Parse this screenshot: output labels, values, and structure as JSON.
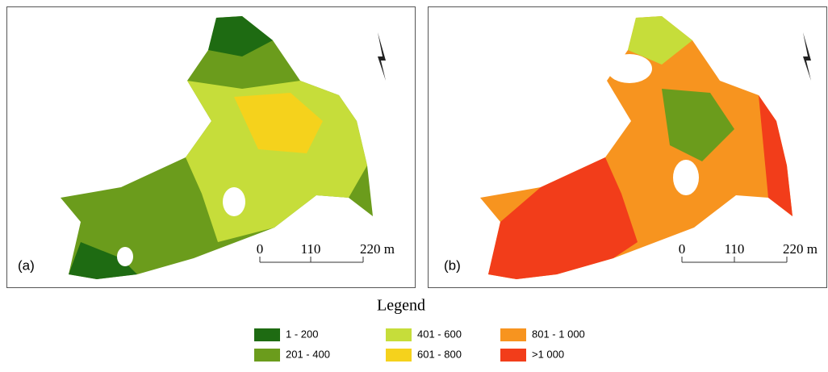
{
  "panels": [
    {
      "label": "(a)",
      "scale": [
        "0",
        "110",
        "220 m"
      ]
    },
    {
      "label": "(b)",
      "scale": [
        "0",
        "110",
        "220 m"
      ]
    }
  ],
  "legend": {
    "title": "Legend",
    "items": [
      {
        "label": "1 - 200",
        "color": "#1e6b12"
      },
      {
        "label": "201 - 400",
        "color": "#6b9c1c"
      },
      {
        "label": "401 - 600",
        "color": "#c6dd3a"
      },
      {
        "label": "601 - 800",
        "color": "#f5d21c"
      },
      {
        "label": "801 - 1 000",
        "color": "#f7941f"
      },
      {
        "label": ">1 000",
        "color": "#f23d1a"
      }
    ]
  }
}
